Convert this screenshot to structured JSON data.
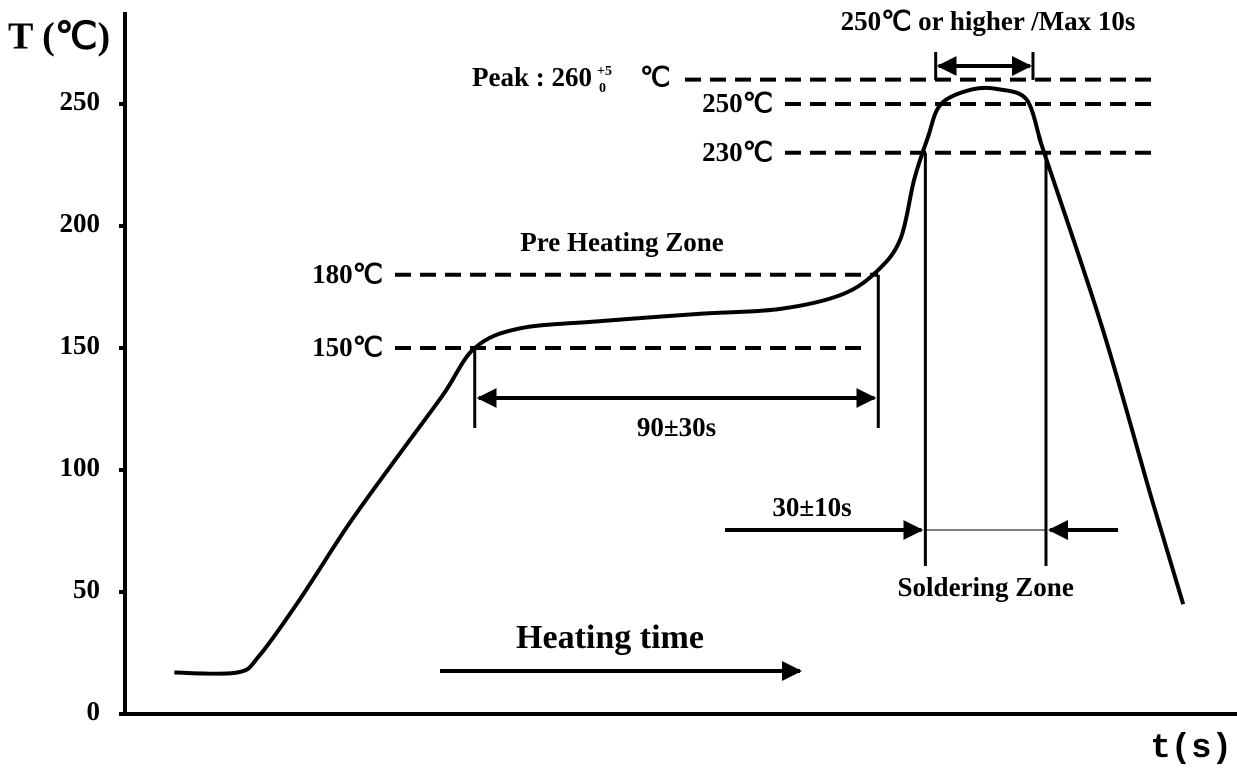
{
  "chart_data": {
    "type": "line",
    "y_axis_label": "T (℃)",
    "x_axis_label": "t(s)",
    "x": [
      11,
      25,
      30,
      39,
      50,
      61,
      71,
      78,
      88,
      106,
      128,
      146,
      160,
      168,
      173,
      176,
      179,
      182,
      189,
      195,
      201,
      204,
      205,
      218,
      229,
      236
    ],
    "values": [
      17,
      17,
      24,
      47,
      78,
      106,
      131,
      150,
      158,
      161,
      164,
      166,
      172,
      182,
      195,
      219,
      236,
      250,
      256,
      256,
      252,
      236,
      230,
      158,
      88,
      45
    ],
    "color": "#000000",
    "xlim": [
      0,
      248
    ],
    "ylim": [
      0,
      250
    ],
    "yticks": [
      0,
      50,
      100,
      150,
      200,
      250
    ],
    "reference_lines": [
      {
        "value": 260,
        "label": "Peak : 260",
        "tolerance_upper": "+5",
        "tolerance_lower": "0",
        "unit": "℃"
      },
      {
        "value": 250,
        "label": "250℃"
      },
      {
        "value": 230,
        "label": "230℃"
      },
      {
        "value": 180,
        "label": "180℃"
      },
      {
        "value": 150,
        "label": "150℃"
      }
    ],
    "annotations": {
      "pre_heating_zone": "Pre Heating Zone",
      "preheat_time": {
        "label": "90±30s",
        "x": [
          78,
          168
        ]
      },
      "soldering_time": {
        "label": "30±10s",
        "zone_label": "Soldering Zone",
        "x": [
          178.5,
          205.4
        ]
      },
      "peak_time": {
        "label": "250℃ or higher /Max 10s",
        "x": [
          180.8,
          202.5
        ]
      },
      "heating_time": "Heating time"
    }
  }
}
